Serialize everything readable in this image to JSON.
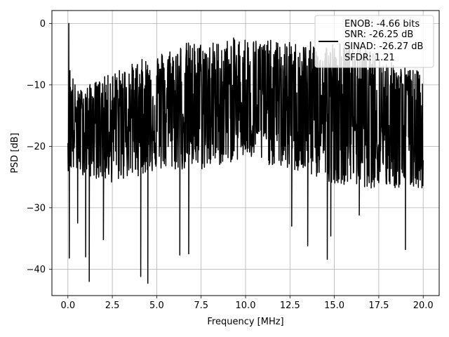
{
  "chart_data": {
    "type": "line",
    "xlabel": "Frequency [MHz]",
    "ylabel": "PSD [dB]",
    "xlim": [
      -0.9,
      20.9
    ],
    "ylim": [
      -44.3,
      2.1
    ],
    "grid": true,
    "line_color": "#000000",
    "x_ticks": [
      0.0,
      2.5,
      5.0,
      7.5,
      10.0,
      12.5,
      15.0,
      17.5,
      20.0
    ],
    "x_tick_labels": [
      "0.0",
      "2.5",
      "5.0",
      "7.5",
      "10.0",
      "12.5",
      "15.0",
      "17.5",
      "20.0"
    ],
    "y_ticks": [
      0,
      -10,
      -20,
      -30,
      -40
    ],
    "y_tick_labels": [
      "0",
      "−10",
      "−20",
      "−30",
      "−40"
    ],
    "legend": {
      "placement": "upper right",
      "entries": [
        "ENOB: -4.66 bits",
        "SNR: -26.25 dB",
        "SINAD: -26.27 dB",
        "SFDR: 1.21"
      ]
    },
    "series": [
      {
        "x_range": [
          0.0,
          20.0
        ],
        "peak": {
          "x": 0.05,
          "y": 0.0
        },
        "upper_envelope": [
          [
            0.0,
            -12
          ],
          [
            0.1,
            -6
          ],
          [
            0.5,
            -11
          ],
          [
            2.5,
            -8
          ],
          [
            4.0,
            -6
          ],
          [
            6.5,
            -3
          ],
          [
            8.0,
            -3
          ],
          [
            10.0,
            -2
          ],
          [
            12.0,
            -3
          ],
          [
            14.0,
            -3
          ],
          [
            16.0,
            -3
          ],
          [
            18.0,
            -6
          ],
          [
            20.0,
            -8
          ]
        ],
        "mid_level": [
          [
            0.0,
            -16
          ],
          [
            2.5,
            -15
          ],
          [
            5.0,
            -14
          ],
          [
            7.5,
            -13
          ],
          [
            10.0,
            -13
          ],
          [
            12.5,
            -13
          ],
          [
            15.0,
            -14
          ],
          [
            17.5,
            -14
          ],
          [
            20.0,
            -15
          ]
        ],
        "lower_envelope": [
          [
            0.0,
            -24
          ],
          [
            2.5,
            -26
          ],
          [
            5.0,
            -24
          ],
          [
            7.5,
            -24
          ],
          [
            10.0,
            -22
          ],
          [
            12.5,
            -24
          ],
          [
            15.0,
            -26
          ],
          [
            17.5,
            -27
          ],
          [
            20.0,
            -27
          ]
        ],
        "deep_nulls": [
          [
            0.08,
            -38.2
          ],
          [
            0.55,
            -32.5
          ],
          [
            1.0,
            -38.0
          ],
          [
            1.2,
            -42.0
          ],
          [
            2.0,
            -35.2
          ],
          [
            4.1,
            -41.2
          ],
          [
            4.5,
            -42.3
          ],
          [
            6.3,
            -37.7
          ],
          [
            6.8,
            -37.5
          ],
          [
            12.6,
            -33.0
          ],
          [
            13.5,
            -36.2
          ],
          [
            14.6,
            -38.4
          ],
          [
            14.8,
            -34.6
          ],
          [
            16.4,
            -31.2
          ],
          [
            19.0,
            -36.8
          ]
        ]
      }
    ]
  }
}
